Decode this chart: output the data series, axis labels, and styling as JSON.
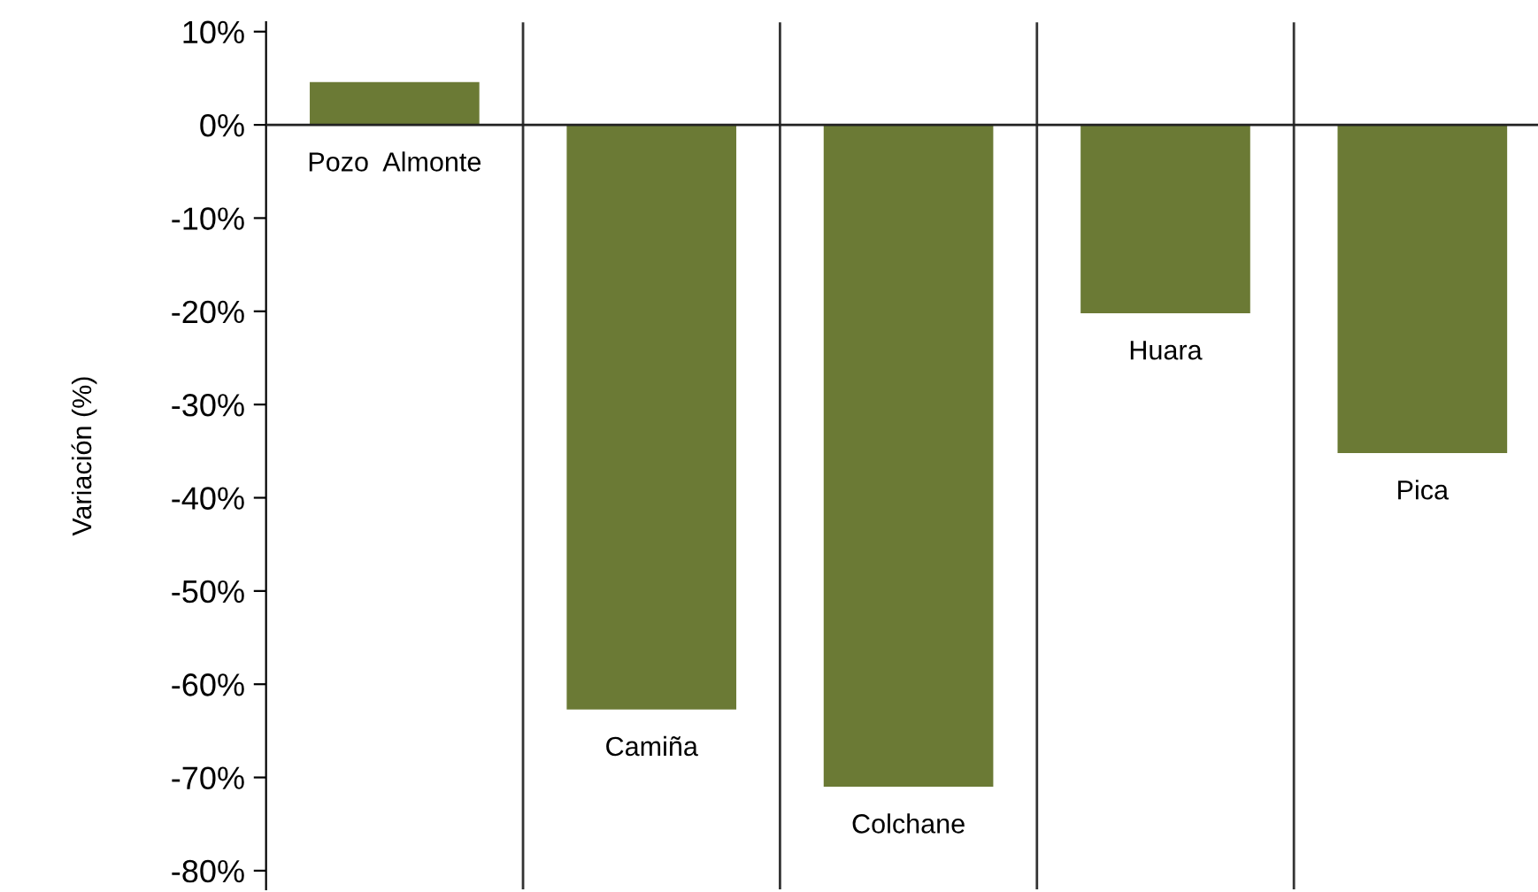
{
  "chart_data": {
    "type": "bar",
    "ylabel": "Variación (%)",
    "categories": [
      "Pozo  Almonte",
      "Camiña",
      "Colchane",
      "Huara",
      "Pica"
    ],
    "values": [
      4.6,
      -62.7,
      -71,
      -20.2,
      -35.2
    ],
    "color": "#6b7a35",
    "ylim": [
      -82,
      11
    ],
    "yticks": [
      {
        "value": 10,
        "label": "10%"
      },
      {
        "value": 0,
        "label": "0%"
      },
      {
        "value": -10,
        "label": "-10%"
      },
      {
        "value": -20,
        "label": "-20%"
      },
      {
        "value": -30,
        "label": "-30%"
      },
      {
        "value": -40,
        "label": "-40%"
      },
      {
        "value": -50,
        "label": "-50%"
      },
      {
        "value": -60,
        "label": "-60%"
      },
      {
        "value": -70,
        "label": "-70%"
      },
      {
        "value": -80,
        "label": "-80%"
      }
    ],
    "grid": "x"
  }
}
